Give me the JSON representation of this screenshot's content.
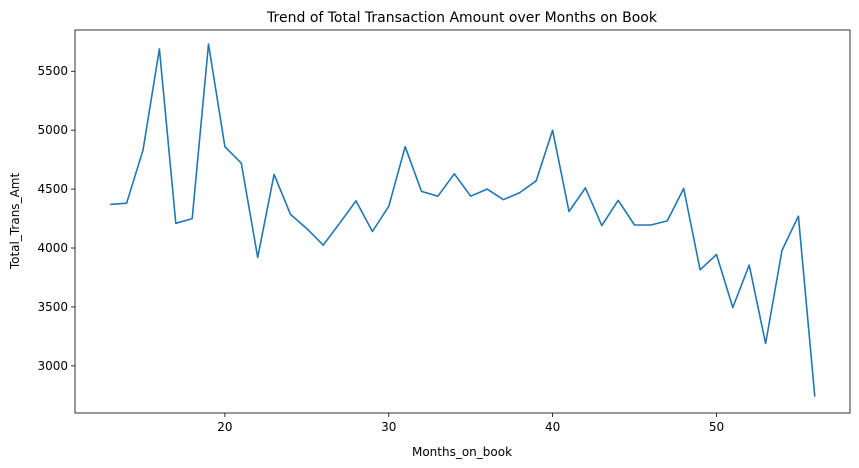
{
  "chart_data": {
    "type": "line",
    "title": "Trend of Total Transaction Amount over Months on Book",
    "xlabel": "Months_on_book",
    "ylabel": "Total_Trans_Amt",
    "xlim": [
      10.85,
      58.15
    ],
    "ylim": [
      2600,
      5850
    ],
    "xticks": [
      20,
      30,
      40,
      50
    ],
    "yticks": [
      3000,
      3500,
      4000,
      4500,
      5000,
      5500
    ],
    "grid": false,
    "line_color": "#1f77b4",
    "series": [
      {
        "x": [
          13,
          14,
          15,
          16,
          17,
          18,
          19,
          20,
          21,
          22,
          23,
          24,
          25,
          26,
          27,
          28,
          29,
          30,
          31,
          32,
          33,
          34,
          35,
          36,
          37,
          38,
          39,
          40,
          41,
          42,
          43,
          44,
          45,
          46,
          47,
          48,
          49,
          50,
          51,
          52,
          53,
          54,
          55,
          56
        ],
        "values": [
          4370,
          4380,
          4830,
          5690,
          4210,
          4250,
          5730,
          4860,
          4720,
          3920,
          4625,
          4285,
          4165,
          4025,
          4210,
          4400,
          4140,
          4355,
          4860,
          4480,
          4440,
          4630,
          4440,
          4500,
          4410,
          4470,
          4570,
          5000,
          4310,
          4510,
          4190,
          4405,
          4195,
          4195,
          4230,
          4505,
          3815,
          3945,
          3495,
          3855,
          3190,
          3980,
          4270,
          2740
        ]
      }
    ]
  }
}
